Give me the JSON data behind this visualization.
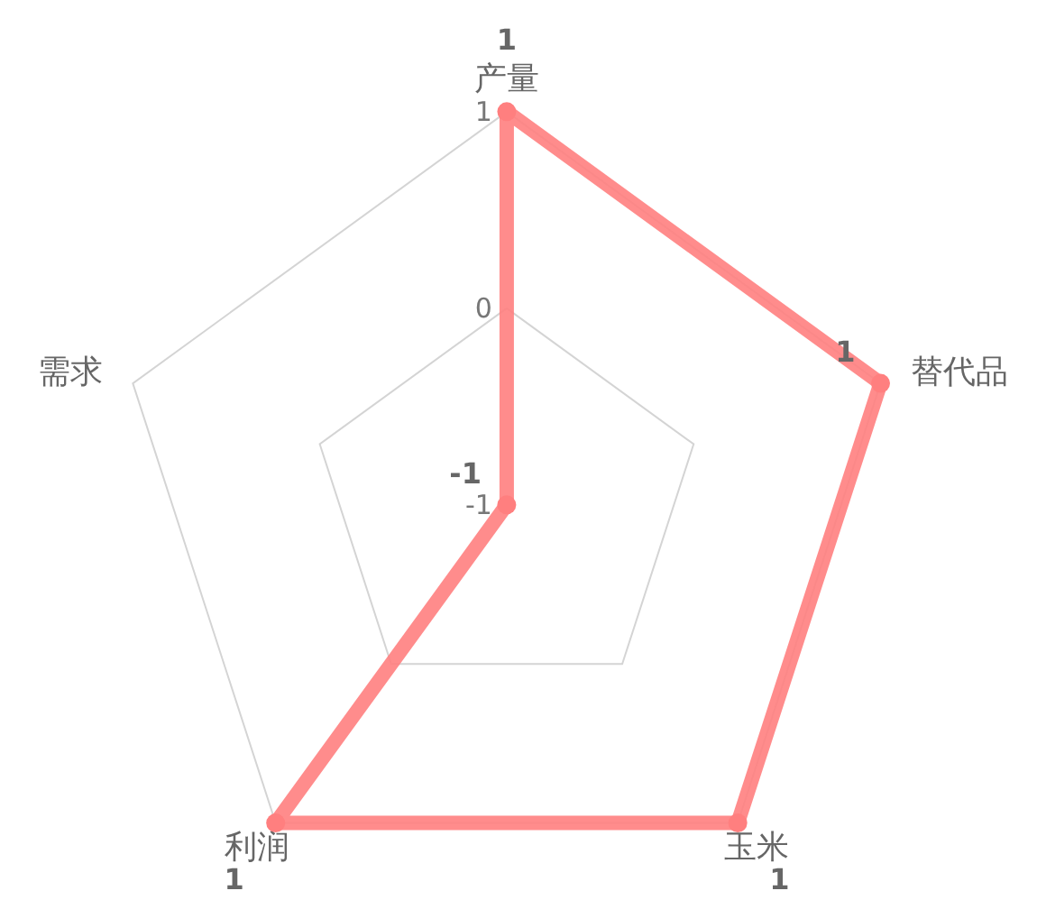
{
  "chart_data": {
    "type": "radar",
    "categories": [
      "产量",
      "替代品",
      "玉米",
      "利润",
      "需求"
    ],
    "series": [
      {
        "color": "#ff7f7f",
        "values": [
          1,
          1,
          1,
          1,
          -1
        ]
      }
    ],
    "ylim": [
      -1,
      1
    ],
    "yticks": [
      -1,
      0,
      1
    ],
    "grid": true,
    "marker": "circle",
    "data_labels": true
  }
}
